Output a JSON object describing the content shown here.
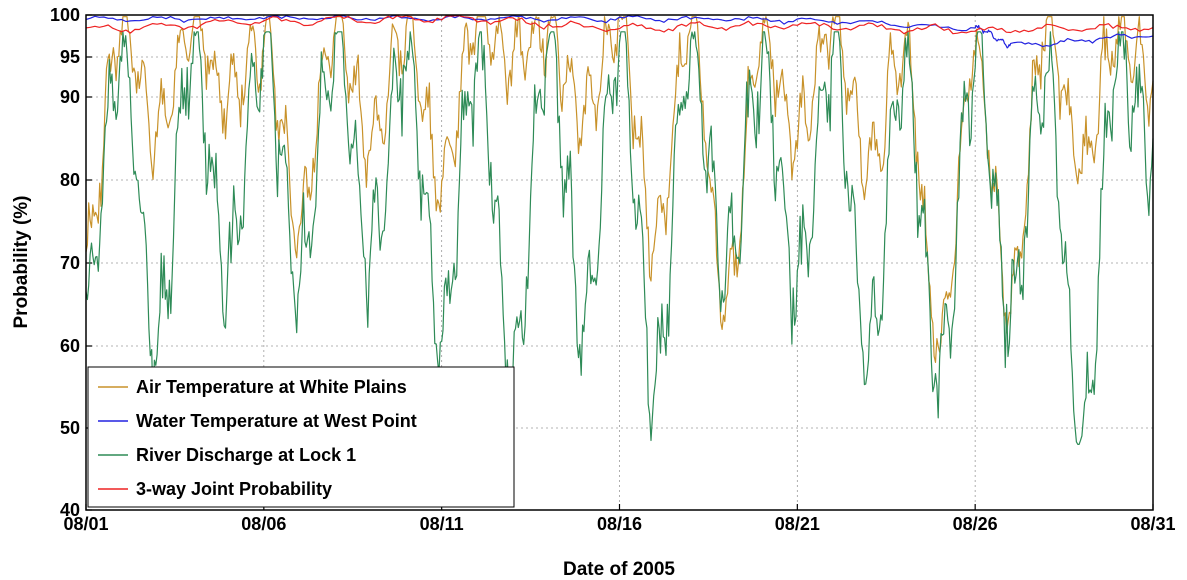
{
  "chart_data": {
    "type": "line",
    "title": "",
    "xlabel": "Date of 2005",
    "ylabel": "Probability (%)",
    "ylim": [
      40,
      100
    ],
    "xlim": [
      "2005-08-01",
      "2005-08-31"
    ],
    "x_tick_labels": [
      "08/01",
      "08/06",
      "08/11",
      "08/16",
      "08/21",
      "08/26",
      "08/31"
    ],
    "y_tick_labels": [
      "40",
      "50",
      "60",
      "70",
      "80",
      "90",
      "95",
      "100"
    ],
    "y_scale": "nonlinear (probability scale)",
    "grid": true,
    "legend_position": "bottom-left",
    "series": [
      {
        "name": "Air Temperature at White Plains",
        "color": "#c8922a",
        "x": [
          "2005-08-01",
          "2005-08-02",
          "2005-08-03",
          "2005-08-04",
          "2005-08-05",
          "2005-08-06",
          "2005-08-07",
          "2005-08-08",
          "2005-08-09",
          "2005-08-10",
          "2005-08-11",
          "2005-08-12",
          "2005-08-13",
          "2005-08-14",
          "2005-08-15",
          "2005-08-16",
          "2005-08-17",
          "2005-08-18",
          "2005-08-19",
          "2005-08-20",
          "2005-08-21",
          "2005-08-22",
          "2005-08-23",
          "2005-08-24",
          "2005-08-25",
          "2005-08-26",
          "2005-08-27",
          "2005-08-28",
          "2005-08-29",
          "2005-08-30",
          "2005-08-31"
        ],
        "values": [
          72,
          99,
          86,
          99,
          90,
          97,
          75,
          99,
          85,
          98,
          80,
          99,
          95,
          98,
          88,
          99,
          73,
          99,
          65,
          98,
          85,
          99,
          82,
          96,
          60,
          95,
          65,
          99,
          82,
          98,
          92
        ]
      },
      {
        "name": "Water Temperature at West Point",
        "color": "#2222e0",
        "x": [
          "2005-08-01",
          "2005-08-06",
          "2005-08-11",
          "2005-08-16",
          "2005-08-21",
          "2005-08-26",
          "2005-08-27",
          "2005-08-31"
        ],
        "values": [
          99.5,
          99.6,
          99.6,
          99.6,
          99.4,
          98.5,
          96.5,
          97.5
        ]
      },
      {
        "name": "River Discharge at Lock 1",
        "color": "#2e8b57",
        "x": [
          "2005-08-01",
          "2005-08-02",
          "2005-08-03",
          "2005-08-04",
          "2005-08-05",
          "2005-08-06",
          "2005-08-07",
          "2005-08-08",
          "2005-08-09",
          "2005-08-10",
          "2005-08-11",
          "2005-08-12",
          "2005-08-13",
          "2005-08-14",
          "2005-08-15",
          "2005-08-16",
          "2005-08-17",
          "2005-08-18",
          "2005-08-19",
          "2005-08-20",
          "2005-08-21",
          "2005-08-22",
          "2005-08-23",
          "2005-08-24",
          "2005-08-25",
          "2005-08-26",
          "2005-08-27",
          "2005-08-28",
          "2005-08-29",
          "2005-08-30",
          "2005-08-31"
        ],
        "values": [
          66,
          95,
          60,
          96,
          69,
          97,
          68,
          96,
          71,
          95,
          62,
          95,
          57,
          96,
          63,
          97,
          56,
          95,
          69,
          94,
          68,
          95,
          59,
          94,
          57,
          95,
          65,
          94,
          49,
          95,
          85
        ]
      },
      {
        "name": "3-way Joint Probability",
        "color": "#ee2222",
        "x": [
          "2005-08-01",
          "2005-08-06",
          "2005-08-11",
          "2005-08-16",
          "2005-08-21",
          "2005-08-26",
          "2005-08-31"
        ],
        "values": [
          98.3,
          99.3,
          99.6,
          98.5,
          98.8,
          98.2,
          98.5
        ]
      }
    ]
  }
}
